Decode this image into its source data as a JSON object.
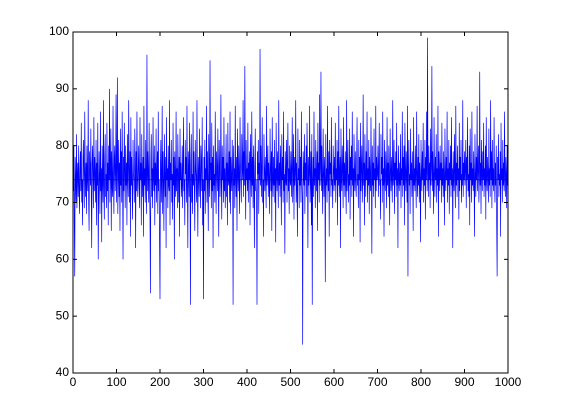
{
  "chart_data": {
    "type": "line",
    "xlim": [
      0,
      1000
    ],
    "xticks": [
      0,
      100,
      200,
      300,
      400,
      500,
      600,
      700,
      800,
      900,
      1000
    ],
    "ylim": [
      40,
      100
    ],
    "yticks": [
      40,
      50,
      60,
      70,
      80,
      90,
      100
    ],
    "hline": {
      "value": 74,
      "color": "#000080"
    },
    "series": [
      {
        "color": "#0000ff",
        "values": [
          72,
          80,
          66,
          57,
          78,
          74,
          70,
          82,
          69,
          75,
          77,
          71,
          80,
          73,
          68,
          76,
          79,
          72,
          84,
          70,
          74,
          66,
          78,
          81,
          73,
          69,
          86,
          75,
          71,
          77,
          68,
          80,
          74,
          72,
          88,
          70,
          65,
          79,
          76,
          73,
          83,
          71,
          62,
          77,
          80,
          74,
          69,
          85,
          72,
          78,
          75,
          70,
          81,
          66,
          77,
          73,
          84,
          60,
          71,
          79,
          74,
          68,
          86,
          72,
          76,
          63,
          80,
          74,
          70,
          88,
          73,
          67,
          78,
          82,
          71,
          75,
          69,
          84,
          72,
          77,
          66,
          80,
          74,
          90,
          70,
          76,
          83,
          65,
          79,
          73,
          71,
          87,
          74,
          68,
          78,
          80,
          72,
          75,
          89,
          70,
          76,
          92,
          68,
          74,
          81,
          71,
          77,
          65,
          83,
          73,
          79,
          70,
          86,
          74,
          60,
          78,
          72,
          84,
          75,
          69,
          80,
          73,
          77,
          66,
          82,
          74,
          71,
          88,
          76,
          70,
          79,
          64,
          85,
          73,
          78,
          72,
          67,
          81,
          75,
          74,
          70,
          83,
          77,
          62,
          79,
          72,
          86,
          74,
          71,
          76,
          80,
          73,
          69,
          85,
          74,
          77,
          66,
          82,
          75,
          71,
          78,
          64,
          87,
          73,
          76,
          70,
          81,
          74,
          68,
          96,
          72,
          79,
          75,
          70,
          84,
          73,
          67,
          54,
          78,
          82,
          71,
          76,
          69,
          85,
          74,
          72,
          80,
          66,
          77,
          73,
          83,
          70,
          75,
          79,
          68,
          86,
          72,
          74,
          63,
          53,
          77,
          81,
          70,
          74,
          87,
          68,
          79,
          73,
          65,
          82,
          75,
          71,
          78,
          62,
          85,
          74,
          76,
          69,
          80,
          73,
          72,
          88,
          66,
          77,
          74,
          81,
          70,
          75,
          67,
          84,
          73,
          78,
          60,
          79,
          74,
          71,
          86,
          72,
          76,
          69,
          82,
          75,
          70,
          78,
          64,
          83,
          74,
          77,
          71,
          73,
          80,
          69,
          76,
          85,
          72,
          74,
          66,
          81,
          75,
          78,
          70,
          87,
          73,
          62,
          79,
          76,
          71,
          84,
          74,
          52,
          77,
          82,
          70,
          75,
          68,
          86,
          73,
          79,
          72,
          65,
          81,
          76,
          74,
          70,
          88,
          73,
          64,
          78,
          75,
          71,
          83,
          74,
          69,
          80,
          77,
          72,
          85,
          66,
          74,
          53,
          78,
          72,
          81,
          68,
          76,
          74,
          87,
          70,
          79,
          73,
          65,
          82,
          75,
          71,
          95,
          74,
          77,
          69,
          84,
          72,
          78,
          62,
          80,
          73,
          75,
          70,
          86,
          74,
          68,
          79,
          76,
          72,
          83,
          74,
          64,
          81,
          77,
          71,
          75,
          89,
          73,
          67,
          80,
          74,
          78,
          70,
          85,
          72,
          76,
          69,
          75,
          82,
          71,
          77,
          66,
          84,
          74,
          73,
          79,
          70,
          86,
          68,
          78,
          74,
          72,
          81,
          75,
          52,
          80,
          73,
          76,
          69,
          87,
          74,
          71,
          78,
          65,
          83,
          75,
          72,
          80,
          74,
          68,
          85,
          77,
          73,
          70,
          82,
          76,
          74,
          88,
          71,
          79,
          73,
          94,
          75,
          67,
          81,
          74,
          76,
          72,
          84,
          70,
          77,
          74,
          79,
          66,
          82,
          75,
          71,
          86,
          73,
          78,
          69,
          80,
          74,
          62,
          76,
          83,
          72,
          74,
          70,
          52,
          79,
          75,
          81,
          68,
          77,
          74,
          97,
          73,
          80,
          71,
          76,
          85,
          70,
          74,
          64,
          82,
          76,
          72,
          78,
          74,
          69,
          87,
          73,
          75,
          80,
          71,
          77,
          74,
          68,
          83,
          76,
          72,
          79,
          65,
          85,
          74,
          71,
          78,
          73,
          81,
          70,
          76,
          63,
          84,
          75,
          72,
          79,
          74,
          69,
          88,
          73,
          77,
          71,
          80,
          75,
          66,
          82,
          74,
          78,
          70,
          86,
          72,
          75,
          61,
          79,
          74,
          73,
          81,
          70,
          77,
          84,
          72,
          76,
          68,
          80,
          74,
          73,
          79,
          71,
          76,
          85,
          70,
          74,
          82,
          67,
          78,
          73,
          75,
          88,
          70,
          77,
          72,
          64,
          83,
          74,
          76,
          69,
          81,
          73,
          78,
          70,
          86,
          74,
          71,
          45,
          79,
          75,
          73,
          82,
          68,
          77,
          74,
          80,
          71,
          84,
          76,
          62,
          78,
          73,
          75,
          87,
          70,
          74,
          79,
          66,
          82,
          52,
          74,
          78,
          71,
          86,
          73,
          76,
          69,
          81,
          75,
          72,
          79,
          65,
          84,
          74,
          77,
          70,
          89,
          73,
          76,
          93,
          72,
          80,
          74,
          68,
          83,
          75,
          71,
          78,
          74,
          56,
          82,
          73,
          76,
          70,
          87,
          74,
          72,
          79,
          64,
          81,
          75,
          77,
          71,
          85,
          73,
          74,
          69,
          80,
          76,
          72,
          78,
          73,
          84,
          70,
          76,
          74,
          81,
          66,
          79,
          73,
          87,
          71,
          75,
          78,
          62,
          83,
          74,
          72,
          80,
          76,
          69,
          85,
          73,
          77,
          71,
          79,
          74,
          68,
          88,
          72,
          76,
          81,
          70,
          75,
          73,
          83,
          67,
          78,
          74,
          80,
          71,
          86,
          73,
          76,
          64,
          82,
          75,
          72,
          79,
          74,
          71,
          77,
          85,
          73,
          75,
          69,
          81,
          74,
          78,
          63,
          84,
          72,
          76,
          80,
          70,
          74,
          89,
          73,
          77,
          66,
          82,
          75,
          71,
          79,
          74,
          86,
          70,
          76,
          73,
          81,
          68,
          78,
          74,
          72,
          85,
          75,
          61,
          80,
          73,
          77,
          71,
          83,
          74,
          76,
          69,
          87,
          72,
          78,
          74,
          75,
          80,
          71,
          76,
          84,
          73,
          74,
          67,
          82,
          75,
          78,
          70,
          86,
          73,
          76,
          64,
          81,
          74,
          72,
          79,
          75,
          69,
          85,
          73,
          77,
          71,
          80,
          74,
          66,
          83,
          76,
          72,
          78,
          74,
          70,
          88,
          73,
          75,
          81,
          68,
          77,
          74,
          79,
          71,
          84,
          73,
          76,
          62,
          80,
          75,
          72,
          77,
          73,
          82,
          69,
          76,
          74,
          86,
          71,
          78,
          73,
          80,
          66,
          84,
          75,
          72,
          79,
          74,
          70,
          87,
          57,
          76,
          81,
          73,
          75,
          68,
          83,
          74,
          77,
          71,
          79,
          74,
          65,
          85,
          73,
          76,
          72,
          80,
          74,
          69,
          86,
          75,
          71,
          78,
          73,
          82,
          70,
          77,
          74,
          63,
          81,
          75,
          72,
          79,
          74,
          84,
          70,
          76,
          73,
          81,
          67,
          78,
          74,
          86,
          72,
          99,
          75,
          71,
          80,
          74,
          77,
          69,
          83,
          73,
          76,
          94,
          72,
          79,
          74,
          68,
          85,
          75,
          71,
          78,
          74,
          82,
          70,
          76,
          73,
          87,
          64,
          79,
          75,
          72,
          80,
          74,
          77,
          70,
          84,
          73,
          76,
          71,
          79,
          74,
          66,
          83,
          75,
          72,
          78,
          74,
          86,
          70,
          76,
          73,
          81,
          68,
          77,
          74,
          80,
          71,
          85,
          73,
          76,
          62,
          79,
          74,
          72,
          82,
          75,
          69,
          87,
          73,
          77,
          71,
          80,
          74,
          76,
          67,
          84,
          72,
          78,
          74,
          81,
          70,
          75,
          73,
          88,
          71,
          77,
          74,
          79,
          73,
          76,
          81,
          69,
          78,
          74,
          85,
          72,
          75,
          71,
          80,
          66,
          83,
          74,
          77,
          70,
          86,
          73,
          76,
          72,
          79,
          74,
          64,
          82,
          75,
          71,
          78,
          74,
          87,
          72,
          76,
          80,
          70,
          74,
          93,
          73,
          77,
          68,
          81,
          75,
          72,
          79,
          74,
          84,
          71,
          76,
          73,
          80,
          67,
          85,
          74,
          72,
          78,
          75,
          70,
          83,
          73,
          76,
          71,
          88,
          74,
          79,
          69,
          81,
          73,
          76,
          72,
          85,
          74,
          70,
          77,
          73,
          80,
          66,
          57,
          78,
          74,
          82,
          71,
          75,
          73,
          79,
          64,
          84,
          74,
          76,
          70,
          81,
          73,
          77,
          72,
          86,
          74,
          71,
          78,
          75,
          69,
          80,
          73,
          76
        ]
      }
    ]
  }
}
